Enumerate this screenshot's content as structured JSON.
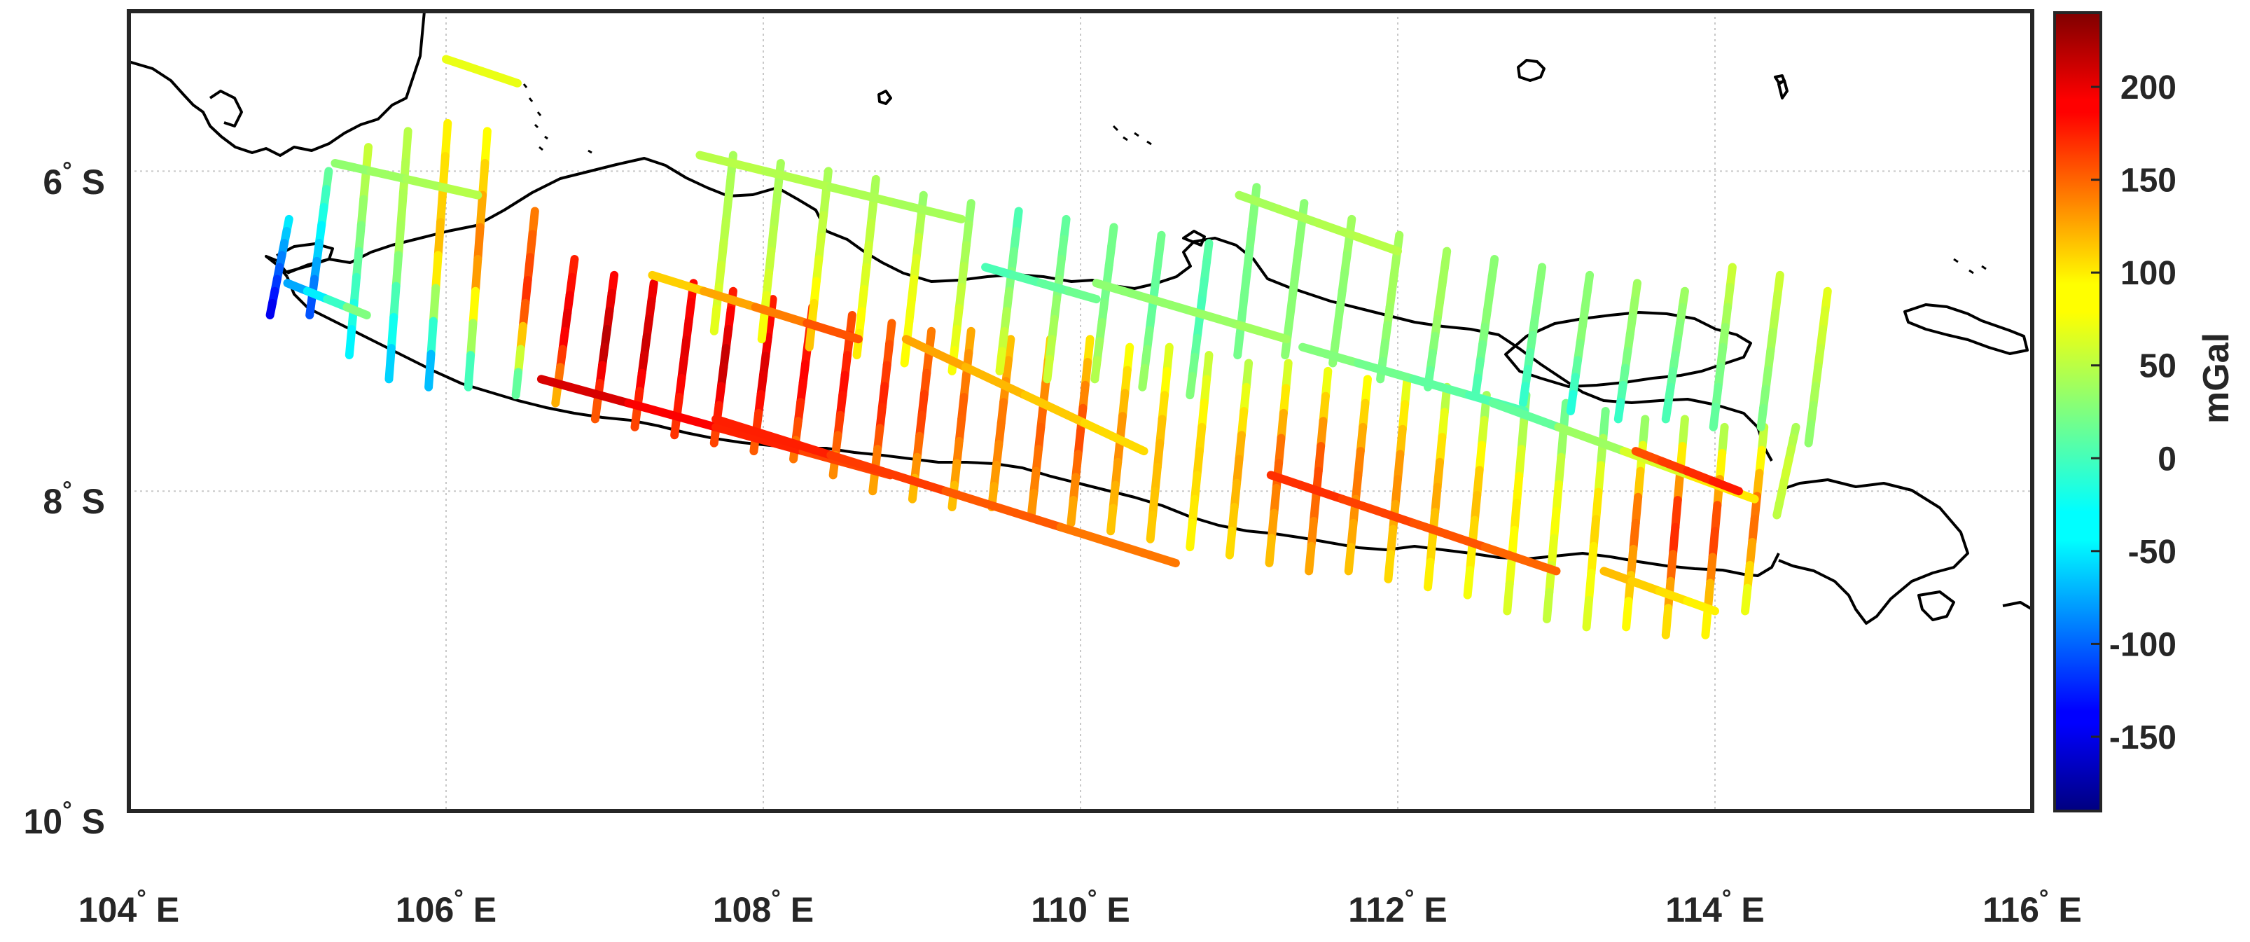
{
  "map": {
    "lon_range": [
      104,
      116
    ],
    "lat_range": [
      -10,
      -5
    ],
    "grid": true,
    "x_ticks": [
      {
        "value": 104,
        "num": "104",
        "hemi": "E"
      },
      {
        "value": 106,
        "num": "106",
        "hemi": "E"
      },
      {
        "value": 108,
        "num": "108",
        "hemi": "E"
      },
      {
        "value": 110,
        "num": "110",
        "hemi": "E"
      },
      {
        "value": 112,
        "num": "112",
        "hemi": "E"
      },
      {
        "value": 114,
        "num": "114",
        "hemi": "E"
      },
      {
        "value": 116,
        "num": "116",
        "hemi": "E"
      }
    ],
    "y_ticks": [
      {
        "value": -6,
        "num": "6",
        "hemi": "S"
      },
      {
        "value": -8,
        "num": "8",
        "hemi": "S"
      },
      {
        "value": -10,
        "num": "10",
        "hemi": "S"
      }
    ],
    "colorbar": {
      "label": "mGal",
      "range": [
        -190,
        240
      ],
      "colormap": "jet",
      "ticks": [
        200,
        150,
        100,
        50,
        0,
        -50,
        -100,
        -150
      ],
      "tick_labels": [
        "200",
        "150",
        "100",
        "50",
        "0",
        "-50",
        "-100",
        "-150"
      ]
    },
    "colors": {
      "coastline": "#000000",
      "frame": "#262626",
      "grid": "#c8c8c8"
    }
  },
  "chart_data": {
    "type": "track-map",
    "value_unit": "mGal",
    "xlim": [
      104,
      116
    ],
    "ylim": [
      -10,
      -5
    ],
    "vertical_tracks": [
      {
        "lon": 104.95,
        "lat_top": -6.3,
        "lat_bot": -6.9,
        "v_top": -30,
        "v_mid": -90,
        "v_bot": -150
      },
      {
        "lon": 105.2,
        "lat_top": -6.0,
        "lat_bot": -6.9,
        "v_top": 20,
        "v_mid": -40,
        "v_bot": -110
      },
      {
        "lon": 105.45,
        "lat_top": -5.85,
        "lat_bot": -7.15,
        "v_top": 60,
        "v_mid": 20,
        "v_bot": -40
      },
      {
        "lon": 105.7,
        "lat_top": -5.75,
        "lat_bot": -7.3,
        "v_top": 50,
        "v_mid": 40,
        "v_bot": -60
      },
      {
        "lon": 105.95,
        "lat_top": -5.7,
        "lat_bot": -7.35,
        "v_top": 80,
        "v_mid": 110,
        "v_bot": -80
      },
      {
        "lon": 106.2,
        "lat_top": -5.75,
        "lat_bot": -7.35,
        "v_top": 70,
        "v_mid": 140,
        "v_bot": -20
      },
      {
        "lon": 106.5,
        "lat_top": -6.25,
        "lat_bot": -7.4,
        "v_top": 130,
        "v_mid": 170,
        "v_bot": -10
      },
      {
        "lon": 106.75,
        "lat_top": -6.55,
        "lat_bot": -7.45,
        "v_top": 170,
        "v_mid": 200,
        "v_bot": 100
      },
      {
        "lon": 107.0,
        "lat_top": -6.65,
        "lat_bot": -7.55,
        "v_top": 180,
        "v_mid": 220,
        "v_bot": 140
      },
      {
        "lon": 107.25,
        "lat_top": -6.7,
        "lat_bot": -7.6,
        "v_top": 190,
        "v_mid": 210,
        "v_bot": 150
      },
      {
        "lon": 107.5,
        "lat_top": -6.7,
        "lat_bot": -7.65,
        "v_top": 180,
        "v_mid": 200,
        "v_bot": 160
      },
      {
        "lon": 107.75,
        "lat_top": -6.75,
        "lat_bot": -7.7,
        "v_top": 170,
        "v_mid": 215,
        "v_bot": 150
      },
      {
        "lon": 108.0,
        "lat_top": -6.8,
        "lat_bot": -7.75,
        "v_top": 170,
        "v_mid": 205,
        "v_bot": 140
      },
      {
        "lon": 108.25,
        "lat_top": -6.85,
        "lat_bot": -7.8,
        "v_top": 160,
        "v_mid": 190,
        "v_bot": 130
      },
      {
        "lon": 108.5,
        "lat_top": -6.9,
        "lat_bot": -7.9,
        "v_top": 150,
        "v_mid": 185,
        "v_bot": 120
      },
      {
        "lon": 108.75,
        "lat_top": -6.95,
        "lat_bot": -8.0,
        "v_top": 140,
        "v_mid": 175,
        "v_bot": 110
      },
      {
        "lon": 109.0,
        "lat_top": -7.0,
        "lat_bot": -8.05,
        "v_top": 130,
        "v_mid": 165,
        "v_bot": 100
      },
      {
        "lon": 109.25,
        "lat_top": -7.0,
        "lat_bot": -8.1,
        "v_top": 110,
        "v_mid": 150,
        "v_bot": 100
      },
      {
        "lon": 109.5,
        "lat_top": -7.05,
        "lat_bot": -8.1,
        "v_top": 100,
        "v_mid": 140,
        "v_bot": 110
      },
      {
        "lon": 109.75,
        "lat_top": -7.05,
        "lat_bot": -8.15,
        "v_top": 90,
        "v_mid": 150,
        "v_bot": 120
      },
      {
        "lon": 110.0,
        "lat_top": -7.05,
        "lat_bot": -8.2,
        "v_top": 80,
        "v_mid": 160,
        "v_bot": 110
      },
      {
        "lon": 110.25,
        "lat_top": -7.1,
        "lat_bot": -8.25,
        "v_top": 70,
        "v_mid": 130,
        "v_bot": 100
      },
      {
        "lon": 110.5,
        "lat_top": -7.1,
        "lat_bot": -8.3,
        "v_top": 60,
        "v_mid": 110,
        "v_bot": 100
      },
      {
        "lon": 110.75,
        "lat_top": -7.15,
        "lat_bot": -8.35,
        "v_top": 50,
        "v_mid": 100,
        "v_bot": 80
      },
      {
        "lon": 111.0,
        "lat_top": -7.2,
        "lat_bot": -8.4,
        "v_top": 40,
        "v_mid": 120,
        "v_bot": 90
      },
      {
        "lon": 111.25,
        "lat_top": -7.2,
        "lat_bot": -8.45,
        "v_top": 50,
        "v_mid": 150,
        "v_bot": 100
      },
      {
        "lon": 111.5,
        "lat_top": -7.25,
        "lat_bot": -8.5,
        "v_top": 60,
        "v_mid": 160,
        "v_bot": 110
      },
      {
        "lon": 111.75,
        "lat_top": -7.3,
        "lat_bot": -8.5,
        "v_top": 70,
        "v_mid": 140,
        "v_bot": 100
      },
      {
        "lon": 112.0,
        "lat_top": -7.3,
        "lat_bot": -8.55,
        "v_top": 60,
        "v_mid": 130,
        "v_bot": 90
      },
      {
        "lon": 112.25,
        "lat_top": -7.35,
        "lat_bot": -8.6,
        "v_top": 40,
        "v_mid": 120,
        "v_bot": 80
      },
      {
        "lon": 112.5,
        "lat_top": -7.4,
        "lat_bot": -8.65,
        "v_top": 30,
        "v_mid": 110,
        "v_bot": 70
      },
      {
        "lon": 112.75,
        "lat_top": -7.4,
        "lat_bot": -8.75,
        "v_top": 20,
        "v_mid": 90,
        "v_bot": 60
      },
      {
        "lon": 113.0,
        "lat_top": -7.45,
        "lat_bot": -8.8,
        "v_top": 10,
        "v_mid": 80,
        "v_bot": 50
      },
      {
        "lon": 113.25,
        "lat_top": -7.5,
        "lat_bot": -8.85,
        "v_top": 10,
        "v_mid": 100,
        "v_bot": 60
      },
      {
        "lon": 113.5,
        "lat_top": -7.55,
        "lat_bot": -8.85,
        "v_top": 20,
        "v_mid": 150,
        "v_bot": 70
      },
      {
        "lon": 113.75,
        "lat_top": -7.55,
        "lat_bot": -8.9,
        "v_top": 30,
        "v_mid": 180,
        "v_bot": 80
      },
      {
        "lon": 114.0,
        "lat_top": -7.6,
        "lat_bot": -8.9,
        "v_top": 30,
        "v_mid": 170,
        "v_bot": 70
      },
      {
        "lon": 114.25,
        "lat_top": -7.6,
        "lat_bot": -8.75,
        "v_top": 40,
        "v_mid": 150,
        "v_bot": 60
      },
      {
        "lon": 114.45,
        "lat_top": -7.6,
        "lat_bot": -8.15,
        "v_top": 40,
        "v_mid": 60,
        "v_bot": 50
      }
    ],
    "northern_tracks": [
      {
        "lon": 107.75,
        "lat_top": -5.9,
        "lat_bot": -7.0,
        "v_top": 40,
        "v_mid": 50,
        "v_bot": 70
      },
      {
        "lon": 108.05,
        "lat_top": -5.95,
        "lat_bot": -7.05,
        "v_top": 40,
        "v_mid": 50,
        "v_bot": 80
      },
      {
        "lon": 108.35,
        "lat_top": -6.0,
        "lat_bot": -7.1,
        "v_top": 40,
        "v_mid": 60,
        "v_bot": 110
      },
      {
        "lon": 108.65,
        "lat_top": -6.05,
        "lat_bot": -7.15,
        "v_top": 40,
        "v_mid": 60,
        "v_bot": 90
      },
      {
        "lon": 108.95,
        "lat_top": -6.15,
        "lat_bot": -7.2,
        "v_top": 30,
        "v_mid": 70,
        "v_bot": 80
      },
      {
        "lon": 109.25,
        "lat_top": -6.2,
        "lat_bot": -7.25,
        "v_top": 30,
        "v_mid": 50,
        "v_bot": 80
      },
      {
        "lon": 109.55,
        "lat_top": -6.25,
        "lat_bot": -7.25,
        "v_top": 0,
        "v_mid": 30,
        "v_bot": 70
      },
      {
        "lon": 109.85,
        "lat_top": -6.3,
        "lat_bot": -7.3,
        "v_top": 10,
        "v_mid": 30,
        "v_bot": 60
      },
      {
        "lon": 110.15,
        "lat_top": -6.35,
        "lat_bot": -7.3,
        "v_top": 20,
        "v_mid": 20,
        "v_bot": 50
      },
      {
        "lon": 110.45,
        "lat_top": -6.4,
        "lat_bot": -7.35,
        "v_top": 20,
        "v_mid": 10,
        "v_bot": 40
      },
      {
        "lon": 110.75,
        "lat_top": -6.45,
        "lat_bot": -7.4,
        "v_top": 10,
        "v_mid": 0,
        "v_bot": 30
      },
      {
        "lon": 111.05,
        "lat_top": -6.1,
        "lat_bot": -7.15,
        "v_top": 30,
        "v_mid": 20,
        "v_bot": 20
      },
      {
        "lon": 111.35,
        "lat_top": -6.2,
        "lat_bot": -7.15,
        "v_top": 30,
        "v_mid": 30,
        "v_bot": 30
      },
      {
        "lon": 111.65,
        "lat_top": -6.3,
        "lat_bot": -7.2,
        "v_top": 40,
        "v_mid": 30,
        "v_bot": 30
      },
      {
        "lon": 111.95,
        "lat_top": -6.4,
        "lat_bot": -7.3,
        "v_top": 40,
        "v_mid": 40,
        "v_bot": 20
      },
      {
        "lon": 112.25,
        "lat_top": -6.5,
        "lat_bot": -7.35,
        "v_top": 40,
        "v_mid": 40,
        "v_bot": 10
      },
      {
        "lon": 112.55,
        "lat_top": -6.55,
        "lat_bot": -7.4,
        "v_top": 30,
        "v_mid": 30,
        "v_bot": 0
      },
      {
        "lon": 112.85,
        "lat_top": -6.6,
        "lat_bot": -7.45,
        "v_top": 30,
        "v_mid": 20,
        "v_bot": -10
      },
      {
        "lon": 113.15,
        "lat_top": -6.65,
        "lat_bot": -7.5,
        "v_top": 30,
        "v_mid": 30,
        "v_bot": -20
      },
      {
        "lon": 113.45,
        "lat_top": -6.7,
        "lat_bot": -7.55,
        "v_top": 40,
        "v_mid": 30,
        "v_bot": -10
      },
      {
        "lon": 113.75,
        "lat_top": -6.75,
        "lat_bot": -7.55,
        "v_top": 40,
        "v_mid": 20,
        "v_bot": 0
      },
      {
        "lon": 114.05,
        "lat_top": -6.6,
        "lat_bot": -7.6,
        "v_top": 60,
        "v_mid": 30,
        "v_bot": 10
      },
      {
        "lon": 114.35,
        "lat_top": -6.65,
        "lat_bot": -7.6,
        "v_top": 60,
        "v_mid": 40,
        "v_bot": 20
      },
      {
        "lon": 114.65,
        "lat_top": -6.75,
        "lat_bot": -7.7,
        "v_top": 70,
        "v_mid": 50,
        "v_bot": 30
      }
    ],
    "cross_tracks": [
      {
        "lon1": 105.0,
        "lat1": -6.7,
        "lon2": 105.5,
        "lat2": -6.9,
        "v1": -80,
        "v2": 40
      },
      {
        "lon1": 105.3,
        "lat1": -5.95,
        "lon2": 106.2,
        "lat2": -6.15,
        "v1": 30,
        "v2": 50
      },
      {
        "lon1": 106.0,
        "lat1": -5.3,
        "lon2": 106.45,
        "lat2": -5.45,
        "v1": 70,
        "v2": 70
      },
      {
        "lon1": 106.6,
        "lat1": -7.3,
        "lon2": 108.8,
        "lat2": -7.9,
        "v1": 210,
        "v2": 150
      },
      {
        "lon1": 107.3,
        "lat1": -6.65,
        "lon2": 108.6,
        "lat2": -7.05,
        "v1": 90,
        "v2": 160
      },
      {
        "lon1": 107.7,
        "lat1": -7.55,
        "lon2": 110.6,
        "lat2": -8.45,
        "v1": 180,
        "v2": 130
      },
      {
        "lon1": 107.6,
        "lat1": -5.9,
        "lon2": 109.25,
        "lat2": -6.3,
        "v1": 50,
        "v2": 40
      },
      {
        "lon1": 108.9,
        "lat1": -7.05,
        "lon2": 110.4,
        "lat2": -7.75,
        "v1": 120,
        "v2": 90
      },
      {
        "lon1": 109.4,
        "lat1": -6.6,
        "lon2": 110.1,
        "lat2": -6.8,
        "v1": 0,
        "v2": 20
      },
      {
        "lon1": 110.1,
        "lat1": -6.7,
        "lon2": 111.3,
        "lat2": -7.05,
        "v1": 30,
        "v2": 40
      },
      {
        "lon1": 111.0,
        "lat1": -6.15,
        "lon2": 112.0,
        "lat2": -6.5,
        "v1": 40,
        "v2": 50
      },
      {
        "lon1": 111.4,
        "lat1": -7.1,
        "lon2": 112.8,
        "lat2": -7.5,
        "v1": 30,
        "v2": 0
      },
      {
        "lon1": 111.2,
        "lat1": -7.9,
        "lon2": 113.0,
        "lat2": -8.5,
        "v1": 170,
        "v2": 140
      },
      {
        "lon1": 112.6,
        "lat1": -7.45,
        "lon2": 114.25,
        "lat2": -8.05,
        "v1": 0,
        "v2": 100
      },
      {
        "lon1": 113.3,
        "lat1": -8.5,
        "lon2": 114.0,
        "lat2": -8.75,
        "v1": 110,
        "v2": 80
      },
      {
        "lon1": 113.5,
        "lat1": -7.75,
        "lon2": 114.15,
        "lat2": -8.0,
        "v1": 150,
        "v2": 180
      }
    ]
  }
}
